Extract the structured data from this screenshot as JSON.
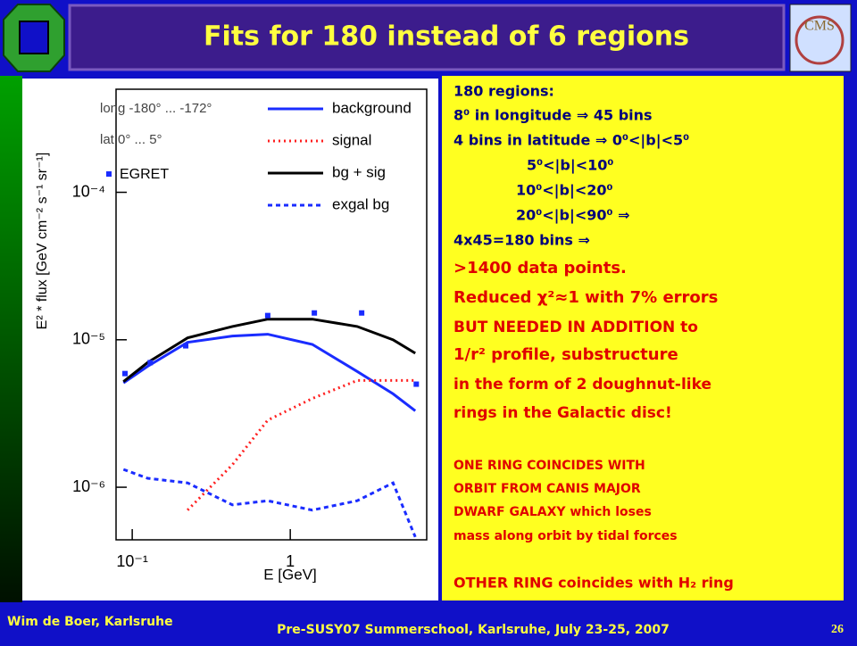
{
  "header": {
    "title": "Fits for 180 instead of 6 regions"
  },
  "chart_data": {
    "type": "line",
    "x_log": true,
    "y_log": true,
    "xlim": [
      0.079,
      7.3
    ],
    "ylim": [
      4.4e-07,
      0.0005
    ],
    "xticks": [
      {
        "value": 0.1,
        "label": "10⁻¹"
      },
      1
    ],
    "yticks": [
      {
        "value": 1e-06,
        "label": "10⁻⁶"
      },
      {
        "value": 1e-05,
        "label": "10⁻⁵"
      },
      {
        "value": 0.0001,
        "label": "10⁻⁴"
      }
    ],
    "x_label": "E [GeV]",
    "y_label": "E² * flux [GeV cm⁻² s⁻¹ sr⁻¹]",
    "annotations": [
      "long   -180° ... -172°",
      "lat      0° ... 5°"
    ],
    "x": [
      0.088,
      0.125,
      0.224,
      0.43,
      0.72,
      1.38,
      2.65,
      4.47,
      6.18
    ],
    "series": [
      {
        "name": "background",
        "color": "#1a2cff",
        "style": "solid",
        "values": [
          5.1e-06,
          6.6e-06,
          9.6e-06,
          1.06e-05,
          1.09e-05,
          9.3e-06,
          6.1e-06,
          4.3e-06,
          3.3e-06
        ]
      },
      {
        "name": "signal",
        "color": "#ff2020",
        "style": "dotted",
        "values": [
          null,
          null,
          7e-07,
          1.42e-06,
          2.85e-06,
          4e-06,
          5.3e-06,
          5.3e-06,
          5.3e-06
        ]
      },
      {
        "name": "bg + sig",
        "color": "#000000",
        "style": "solid",
        "values": [
          5.2e-06,
          7e-06,
          1.03e-05,
          1.23e-05,
          1.38e-05,
          1.38e-05,
          1.23e-05,
          1e-05,
          8.1e-06
        ]
      },
      {
        "name": "exgal bg",
        "color": "#1a2cff",
        "style": "dashed",
        "values": [
          1.32e-06,
          1.15e-06,
          1.07e-06,
          7.6e-07,
          8.1e-07,
          7e-07,
          8.1e-07,
          1.07e-06,
          4.6e-07
        ]
      }
    ],
    "points": {
      "name": "EGRET",
      "color": "#1a2cff",
      "x": [
        0.09,
        0.13,
        0.218,
        0.72,
        1.42,
        2.83,
        6.27
      ],
      "values": [
        5.9e-06,
        7e-06,
        9.1e-06,
        1.46e-05,
        1.52e-05,
        1.52e-05,
        5e-06
      ]
    }
  },
  "text_panel": {
    "lines": [
      "180 regions:",
      "8⁰ in longitude ⇒ 45 bins",
      "4 bins in latitude ⇒ 0⁰<|b|<5⁰",
      "5⁰<|b|<10⁰",
      "10⁰<|b|<20⁰",
      "20⁰<|b|<90⁰ ⇒",
      "4x45=180 bins ⇒",
      ">1400 data points.",
      "Reduced χ²≈1 with 7% errors",
      "BUT NEEDED IN ADDITION to",
      "1/r² profile, substructure",
      "in the form of 2 doughnut-like",
      "rings in the Galactic disc!",
      "ONE RING COINCIDES WITH",
      "ORBIT FROM CANIS MAJOR",
      "DWARF GALAXY which loses",
      "mass along orbit by tidal forces",
      "OTHER RING coincides with H₂ ring"
    ]
  },
  "footer": {
    "author": "Wim de Boer, Karlsruhe",
    "event": "Pre-SUSY07 Summerschool, Karlsruhe, July 23-25, 2007",
    "page": "26"
  }
}
